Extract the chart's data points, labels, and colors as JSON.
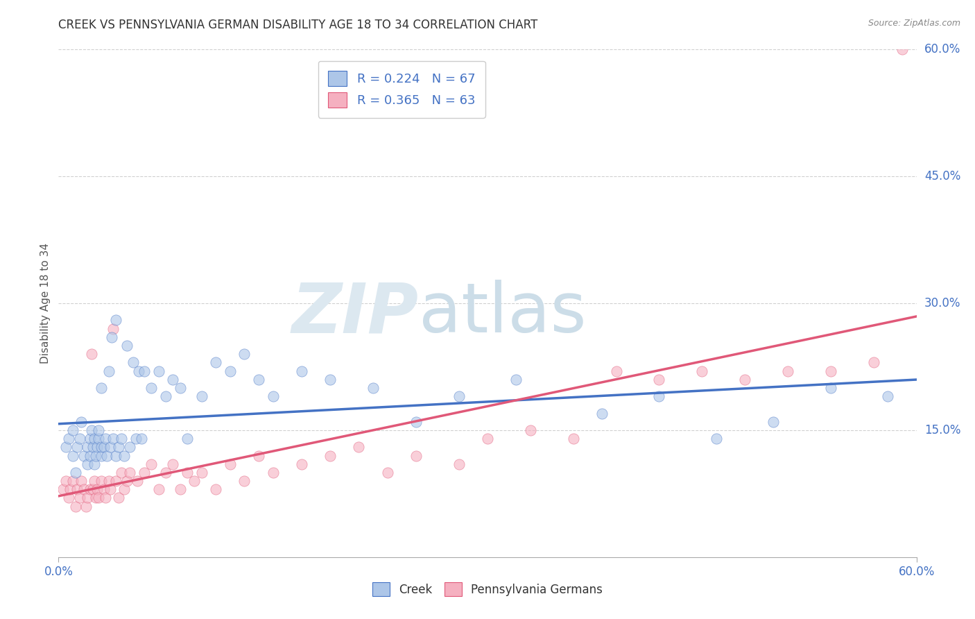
{
  "title": "CREEK VS PENNSYLVANIA GERMAN DISABILITY AGE 18 TO 34 CORRELATION CHART",
  "source": "Source: ZipAtlas.com",
  "ylabel": "Disability Age 18 to 34",
  "x_min": 0.0,
  "x_max": 0.6,
  "y_min": 0.0,
  "y_max": 0.6,
  "x_tick_positions": [
    0.0,
    0.6
  ],
  "x_tick_labels": [
    "0.0%",
    "60.0%"
  ],
  "y_ticks_right": [
    0.15,
    0.3,
    0.45,
    0.6
  ],
  "y_tick_labels_right": [
    "15.0%",
    "30.0%",
    "45.0%",
    "60.0%"
  ],
  "creek_color": "#adc6e8",
  "pa_german_color": "#f5b0c0",
  "creek_line_color": "#4472c4",
  "pa_german_line_color": "#e05878",
  "creek_R": 0.224,
  "creek_N": 67,
  "pa_german_R": 0.365,
  "pa_german_N": 63,
  "legend_label_creek": "Creek",
  "legend_label_pa": "Pennsylvania Germans",
  "background_color": "#ffffff",
  "grid_color": "#d0d0d0",
  "title_color": "#333333",
  "axis_label_color": "#4472c4",
  "creek_scatter_x": [
    0.005,
    0.007,
    0.01,
    0.01,
    0.012,
    0.013,
    0.015,
    0.016,
    0.018,
    0.02,
    0.02,
    0.022,
    0.022,
    0.023,
    0.024,
    0.025,
    0.025,
    0.026,
    0.027,
    0.028,
    0.028,
    0.03,
    0.03,
    0.03,
    0.032,
    0.033,
    0.034,
    0.035,
    0.036,
    0.037,
    0.038,
    0.04,
    0.04,
    0.042,
    0.044,
    0.046,
    0.048,
    0.05,
    0.052,
    0.054,
    0.056,
    0.058,
    0.06,
    0.065,
    0.07,
    0.075,
    0.08,
    0.085,
    0.09,
    0.1,
    0.11,
    0.12,
    0.13,
    0.14,
    0.15,
    0.17,
    0.19,
    0.22,
    0.25,
    0.28,
    0.32,
    0.38,
    0.42,
    0.46,
    0.5,
    0.54,
    0.58
  ],
  "creek_scatter_y": [
    0.13,
    0.14,
    0.12,
    0.15,
    0.1,
    0.13,
    0.14,
    0.16,
    0.12,
    0.11,
    0.13,
    0.12,
    0.14,
    0.15,
    0.13,
    0.11,
    0.14,
    0.12,
    0.13,
    0.14,
    0.15,
    0.12,
    0.13,
    0.2,
    0.13,
    0.14,
    0.12,
    0.22,
    0.13,
    0.26,
    0.14,
    0.12,
    0.28,
    0.13,
    0.14,
    0.12,
    0.25,
    0.13,
    0.23,
    0.14,
    0.22,
    0.14,
    0.22,
    0.2,
    0.22,
    0.19,
    0.21,
    0.2,
    0.14,
    0.19,
    0.23,
    0.22,
    0.24,
    0.21,
    0.19,
    0.22,
    0.21,
    0.2,
    0.16,
    0.19,
    0.21,
    0.17,
    0.19,
    0.14,
    0.16,
    0.2,
    0.19
  ],
  "pa_scatter_x": [
    0.003,
    0.005,
    0.007,
    0.008,
    0.01,
    0.012,
    0.013,
    0.015,
    0.016,
    0.018,
    0.019,
    0.02,
    0.022,
    0.023,
    0.024,
    0.025,
    0.026,
    0.027,
    0.028,
    0.03,
    0.032,
    0.033,
    0.035,
    0.036,
    0.038,
    0.04,
    0.042,
    0.044,
    0.046,
    0.048,
    0.05,
    0.055,
    0.06,
    0.065,
    0.07,
    0.075,
    0.08,
    0.085,
    0.09,
    0.095,
    0.1,
    0.11,
    0.12,
    0.13,
    0.14,
    0.15,
    0.17,
    0.19,
    0.21,
    0.23,
    0.25,
    0.28,
    0.3,
    0.33,
    0.36,
    0.39,
    0.42,
    0.45,
    0.48,
    0.51,
    0.54,
    0.57,
    0.59
  ],
  "pa_scatter_y": [
    0.08,
    0.09,
    0.07,
    0.08,
    0.09,
    0.06,
    0.08,
    0.07,
    0.09,
    0.08,
    0.06,
    0.07,
    0.08,
    0.24,
    0.08,
    0.09,
    0.07,
    0.08,
    0.07,
    0.09,
    0.08,
    0.07,
    0.09,
    0.08,
    0.27,
    0.09,
    0.07,
    0.1,
    0.08,
    0.09,
    0.1,
    0.09,
    0.1,
    0.11,
    0.08,
    0.1,
    0.11,
    0.08,
    0.1,
    0.09,
    0.1,
    0.08,
    0.11,
    0.09,
    0.12,
    0.1,
    0.11,
    0.12,
    0.13,
    0.1,
    0.12,
    0.11,
    0.14,
    0.15,
    0.14,
    0.22,
    0.21,
    0.22,
    0.21,
    0.22,
    0.22,
    0.23,
    0.6
  ]
}
